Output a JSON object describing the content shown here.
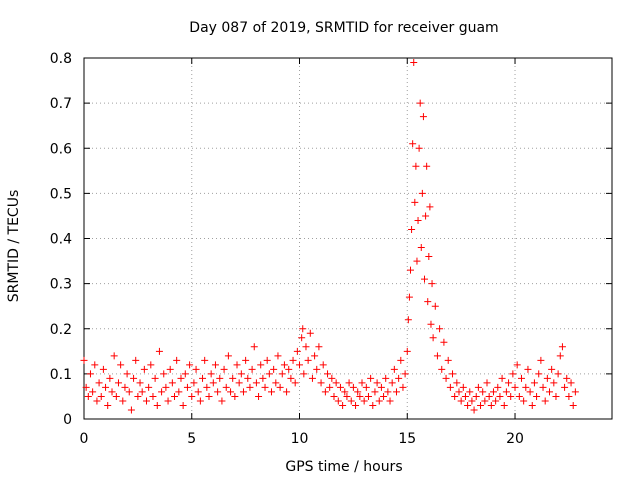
{
  "chart_data": {
    "type": "scatter",
    "title": "Day 087 of 2019, SRMTID for receiver guam",
    "xlabel": "GPS time / hours",
    "ylabel": "SRMTID / TECUs",
    "xlim": [
      0,
      24.5
    ],
    "ylim": [
      0,
      0.8
    ],
    "xticks": [
      0,
      5,
      10,
      15,
      20
    ],
    "xtick_labels": [
      "0",
      "5",
      "10",
      "15",
      "20"
    ],
    "yticks": [
      0,
      0.1,
      0.2,
      0.3,
      0.4,
      0.5,
      0.6,
      0.7,
      0.8
    ],
    "ytick_labels": [
      "0",
      "0.1",
      "0.2",
      "0.3",
      "0.4",
      "0.5",
      "0.6",
      "0.7",
      "0.8"
    ],
    "grid": true,
    "marker": "plus",
    "color": "#ff0000",
    "series": [
      {
        "name": "SRMTID",
        "points": [
          [
            0.0,
            0.13
          ],
          [
            0.1,
            0.07
          ],
          [
            0.2,
            0.05
          ],
          [
            0.3,
            0.1
          ],
          [
            0.4,
            0.06
          ],
          [
            0.5,
            0.12
          ],
          [
            0.6,
            0.04
          ],
          [
            0.7,
            0.08
          ],
          [
            0.8,
            0.05
          ],
          [
            0.9,
            0.11
          ],
          [
            1.0,
            0.07
          ],
          [
            1.1,
            0.03
          ],
          [
            1.2,
            0.09
          ],
          [
            1.3,
            0.06
          ],
          [
            1.4,
            0.14
          ],
          [
            1.5,
            0.05
          ],
          [
            1.6,
            0.08
          ],
          [
            1.7,
            0.12
          ],
          [
            1.8,
            0.04
          ],
          [
            1.9,
            0.07
          ],
          [
            2.0,
            0.1
          ],
          [
            2.1,
            0.06
          ],
          [
            2.2,
            0.02
          ],
          [
            2.3,
            0.09
          ],
          [
            2.4,
            0.13
          ],
          [
            2.5,
            0.05
          ],
          [
            2.6,
            0.08
          ],
          [
            2.7,
            0.06
          ],
          [
            2.8,
            0.11
          ],
          [
            2.9,
            0.04
          ],
          [
            3.0,
            0.07
          ],
          [
            3.1,
            0.12
          ],
          [
            3.2,
            0.05
          ],
          [
            3.3,
            0.09
          ],
          [
            3.4,
            0.03
          ],
          [
            3.5,
            0.15
          ],
          [
            3.6,
            0.06
          ],
          [
            3.7,
            0.1
          ],
          [
            3.8,
            0.07
          ],
          [
            3.9,
            0.04
          ],
          [
            4.0,
            0.11
          ],
          [
            4.1,
            0.08
          ],
          [
            4.2,
            0.05
          ],
          [
            4.3,
            0.13
          ],
          [
            4.4,
            0.06
          ],
          [
            4.5,
            0.09
          ],
          [
            4.6,
            0.03
          ],
          [
            4.7,
            0.1
          ],
          [
            4.8,
            0.07
          ],
          [
            4.9,
            0.12
          ],
          [
            5.0,
            0.05
          ],
          [
            5.1,
            0.08
          ],
          [
            5.2,
            0.11
          ],
          [
            5.3,
            0.06
          ],
          [
            5.4,
            0.04
          ],
          [
            5.5,
            0.09
          ],
          [
            5.6,
            0.13
          ],
          [
            5.7,
            0.07
          ],
          [
            5.8,
            0.05
          ],
          [
            5.9,
            0.1
          ],
          [
            6.0,
            0.08
          ],
          [
            6.1,
            0.12
          ],
          [
            6.2,
            0.06
          ],
          [
            6.3,
            0.09
          ],
          [
            6.4,
            0.04
          ],
          [
            6.5,
            0.11
          ],
          [
            6.6,
            0.07
          ],
          [
            6.7,
            0.14
          ],
          [
            6.8,
            0.06
          ],
          [
            6.9,
            0.09
          ],
          [
            7.0,
            0.05
          ],
          [
            7.1,
            0.12
          ],
          [
            7.2,
            0.08
          ],
          [
            7.3,
            0.1
          ],
          [
            7.4,
            0.06
          ],
          [
            7.5,
            0.13
          ],
          [
            7.6,
            0.09
          ],
          [
            7.7,
            0.07
          ],
          [
            7.8,
            0.11
          ],
          [
            7.9,
            0.16
          ],
          [
            8.0,
            0.08
          ],
          [
            8.1,
            0.05
          ],
          [
            8.2,
            0.12
          ],
          [
            8.3,
            0.09
          ],
          [
            8.4,
            0.07
          ],
          [
            8.5,
            0.13
          ],
          [
            8.6,
            0.1
          ],
          [
            8.7,
            0.06
          ],
          [
            8.8,
            0.11
          ],
          [
            8.9,
            0.08
          ],
          [
            9.0,
            0.14
          ],
          [
            9.1,
            0.07
          ],
          [
            9.2,
            0.1
          ],
          [
            9.3,
            0.12
          ],
          [
            9.4,
            0.06
          ],
          [
            9.5,
            0.11
          ],
          [
            9.6,
            0.09
          ],
          [
            9.7,
            0.13
          ],
          [
            9.8,
            0.08
          ],
          [
            9.9,
            0.15
          ],
          [
            10.0,
            0.12
          ],
          [
            10.1,
            0.18
          ],
          [
            10.15,
            0.2
          ],
          [
            10.2,
            0.1
          ],
          [
            10.3,
            0.16
          ],
          [
            10.4,
            0.13
          ],
          [
            10.5,
            0.19
          ],
          [
            10.6,
            0.09
          ],
          [
            10.7,
            0.14
          ],
          [
            10.8,
            0.11
          ],
          [
            10.9,
            0.16
          ],
          [
            11.0,
            0.08
          ],
          [
            11.1,
            0.12
          ],
          [
            11.2,
            0.06
          ],
          [
            11.3,
            0.1
          ],
          [
            11.4,
            0.07
          ],
          [
            11.5,
            0.09
          ],
          [
            11.6,
            0.05
          ],
          [
            11.7,
            0.08
          ],
          [
            11.8,
            0.04
          ],
          [
            11.9,
            0.07
          ],
          [
            12.0,
            0.03
          ],
          [
            12.1,
            0.06
          ],
          [
            12.2,
            0.05
          ],
          [
            12.3,
            0.08
          ],
          [
            12.4,
            0.04
          ],
          [
            12.5,
            0.07
          ],
          [
            12.6,
            0.03
          ],
          [
            12.7,
            0.06
          ],
          [
            12.8,
            0.05
          ],
          [
            12.9,
            0.08
          ],
          [
            13.0,
            0.04
          ],
          [
            13.1,
            0.07
          ],
          [
            13.2,
            0.05
          ],
          [
            13.3,
            0.09
          ],
          [
            13.4,
            0.03
          ],
          [
            13.5,
            0.06
          ],
          [
            13.6,
            0.08
          ],
          [
            13.7,
            0.04
          ],
          [
            13.8,
            0.07
          ],
          [
            13.9,
            0.05
          ],
          [
            14.0,
            0.09
          ],
          [
            14.1,
            0.06
          ],
          [
            14.2,
            0.04
          ],
          [
            14.3,
            0.08
          ],
          [
            14.4,
            0.11
          ],
          [
            14.5,
            0.06
          ],
          [
            14.6,
            0.09
          ],
          [
            14.7,
            0.13
          ],
          [
            14.8,
            0.07
          ],
          [
            14.9,
            0.1
          ],
          [
            15.0,
            0.15
          ],
          [
            15.05,
            0.22
          ],
          [
            15.1,
            0.27
          ],
          [
            15.15,
            0.33
          ],
          [
            15.2,
            0.42
          ],
          [
            15.25,
            0.61
          ],
          [
            15.3,
            0.79
          ],
          [
            15.35,
            0.48
          ],
          [
            15.4,
            0.56
          ],
          [
            15.45,
            0.35
          ],
          [
            15.5,
            0.44
          ],
          [
            15.55,
            0.6
          ],
          [
            15.6,
            0.7
          ],
          [
            15.65,
            0.38
          ],
          [
            15.7,
            0.5
          ],
          [
            15.75,
            0.67
          ],
          [
            15.8,
            0.31
          ],
          [
            15.85,
            0.45
          ],
          [
            15.9,
            0.56
          ],
          [
            15.95,
            0.26
          ],
          [
            16.0,
            0.36
          ],
          [
            16.05,
            0.47
          ],
          [
            16.1,
            0.21
          ],
          [
            16.15,
            0.3
          ],
          [
            16.2,
            0.18
          ],
          [
            16.3,
            0.25
          ],
          [
            16.4,
            0.14
          ],
          [
            16.5,
            0.2
          ],
          [
            16.6,
            0.11
          ],
          [
            16.7,
            0.17
          ],
          [
            16.8,
            0.09
          ],
          [
            16.9,
            0.13
          ],
          [
            17.0,
            0.07
          ],
          [
            17.1,
            0.1
          ],
          [
            17.2,
            0.05
          ],
          [
            17.3,
            0.08
          ],
          [
            17.4,
            0.06
          ],
          [
            17.5,
            0.04
          ],
          [
            17.6,
            0.07
          ],
          [
            17.7,
            0.05
          ],
          [
            17.8,
            0.03
          ],
          [
            17.9,
            0.06
          ],
          [
            18.0,
            0.04
          ],
          [
            18.1,
            0.02
          ],
          [
            18.2,
            0.05
          ],
          [
            18.3,
            0.07
          ],
          [
            18.4,
            0.03
          ],
          [
            18.5,
            0.06
          ],
          [
            18.6,
            0.04
          ],
          [
            18.7,
            0.08
          ],
          [
            18.8,
            0.05
          ],
          [
            18.9,
            0.03
          ],
          [
            19.0,
            0.06
          ],
          [
            19.1,
            0.04
          ],
          [
            19.2,
            0.07
          ],
          [
            19.3,
            0.05
          ],
          [
            19.4,
            0.09
          ],
          [
            19.5,
            0.03
          ],
          [
            19.6,
            0.06
          ],
          [
            19.7,
            0.08
          ],
          [
            19.8,
            0.05
          ],
          [
            19.9,
            0.1
          ],
          [
            20.0,
            0.07
          ],
          [
            20.1,
            0.12
          ],
          [
            20.2,
            0.05
          ],
          [
            20.3,
            0.09
          ],
          [
            20.4,
            0.04
          ],
          [
            20.5,
            0.07
          ],
          [
            20.6,
            0.11
          ],
          [
            20.7,
            0.06
          ],
          [
            20.8,
            0.03
          ],
          [
            20.9,
            0.08
          ],
          [
            21.0,
            0.05
          ],
          [
            21.1,
            0.1
          ],
          [
            21.2,
            0.13
          ],
          [
            21.3,
            0.07
          ],
          [
            21.4,
            0.04
          ],
          [
            21.5,
            0.09
          ],
          [
            21.6,
            0.06
          ],
          [
            21.7,
            0.11
          ],
          [
            21.8,
            0.08
          ],
          [
            21.9,
            0.05
          ],
          [
            22.0,
            0.1
          ],
          [
            22.1,
            0.14
          ],
          [
            22.2,
            0.16
          ],
          [
            22.3,
            0.07
          ],
          [
            22.4,
            0.09
          ],
          [
            22.5,
            0.05
          ],
          [
            22.6,
            0.08
          ],
          [
            22.7,
            0.03
          ],
          [
            22.8,
            0.06
          ]
        ]
      }
    ]
  }
}
